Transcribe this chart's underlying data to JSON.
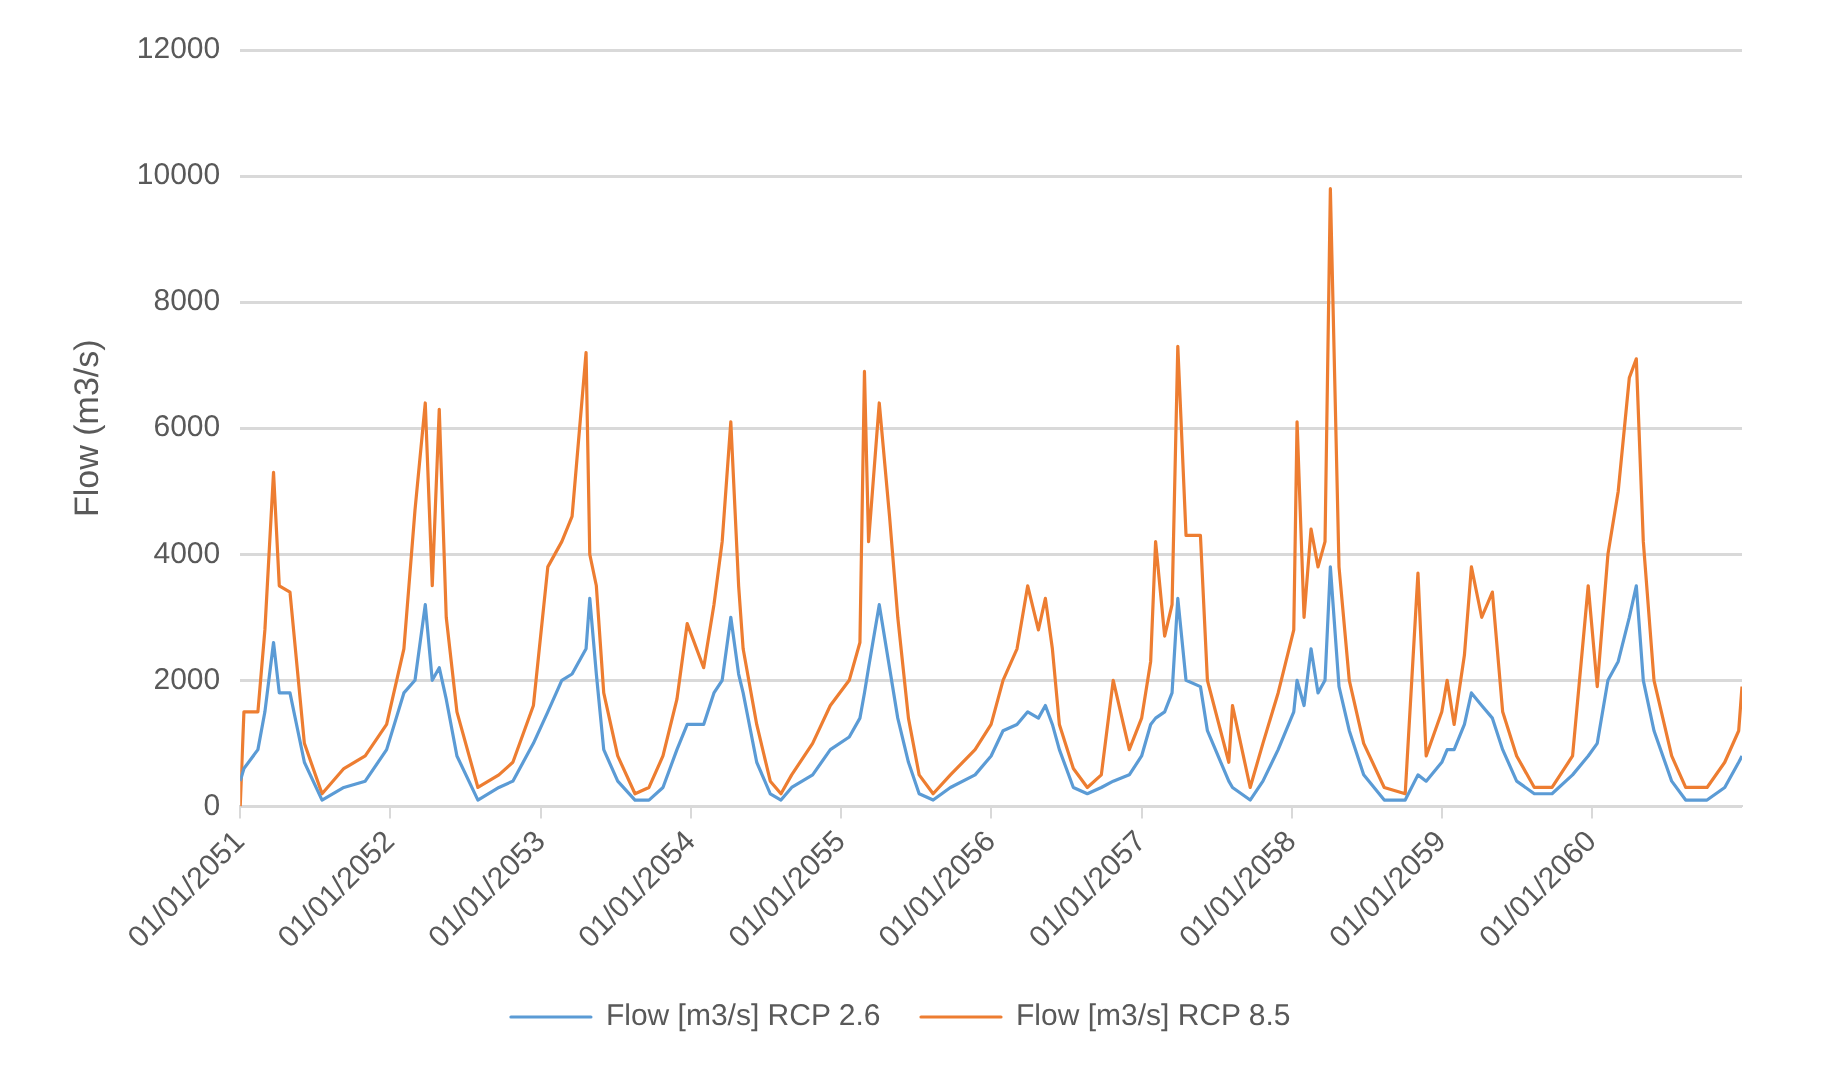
{
  "chart_data": {
    "type": "line",
    "ylabel": "Flow (m3/s)",
    "x": [
      "2051-01-01",
      "2051-01-10",
      "2051-02-13",
      "2051-03-02",
      "2051-03-23",
      "2051-04-06",
      "2051-05-02",
      "2051-06-06",
      "2051-07-19",
      "2051-09-10",
      "2051-11-01",
      "2051-12-23",
      "2052-02-03",
      "2052-03-01",
      "2052-03-26",
      "2052-04-12",
      "2052-04-29",
      "2052-05-16",
      "2052-06-11",
      "2052-08-01",
      "2052-09-21",
      "2052-10-25",
      "2052-12-14",
      "2053-01-18",
      "2053-02-21",
      "2053-03-18",
      "2053-04-21",
      "2053-04-30",
      "2053-05-16",
      "2053-06-03",
      "2053-07-07",
      "2053-08-18",
      "2053-09-21",
      "2053-10-25",
      "2053-11-28",
      "2053-12-23",
      "2054-02-01",
      "2054-02-26",
      "2054-03-18",
      "2054-04-08",
      "2054-04-27",
      "2054-05-08",
      "2054-06-10",
      "2054-07-13",
      "2054-08-08",
      "2054-09-03",
      "2054-10-24",
      "2054-12-06",
      "2055-01-21",
      "2055-02-16",
      "2055-02-27",
      "2055-03-09",
      "2055-04-04",
      "2055-04-29",
      "2055-05-19",
      "2055-06-14",
      "2055-07-10",
      "2055-08-13",
      "2055-09-24",
      "2055-11-23",
      "2056-01-01",
      "2056-01-30",
      "2056-03-04",
      "2056-03-30",
      "2056-04-25",
      "2056-05-12",
      "2056-05-29",
      "2056-06-15",
      "2056-07-19",
      "2056-08-22",
      "2056-09-25",
      "2056-10-24",
      "2056-12-02",
      "2057-01-01",
      "2057-01-23",
      "2057-02-04",
      "2057-02-26",
      "2057-03-16",
      "2057-03-30",
      "2057-04-19",
      "2057-05-24",
      "2057-06-10",
      "2057-08-01",
      "2057-08-10",
      "2057-09-22",
      "2057-10-23",
      "2057-11-29",
      "2058-01-06",
      "2058-01-14",
      "2058-01-31",
      "2058-02-17",
      "2058-03-06",
      "2058-03-23",
      "2058-04-05",
      "2058-04-26",
      "2058-05-21",
      "2058-06-25",
      "2058-08-14",
      "2058-10-04",
      "2058-11-04",
      "2058-11-24",
      "2059-01-01",
      "2059-01-14",
      "2059-01-31",
      "2059-02-25",
      "2059-03-14",
      "2059-04-08",
      "2059-05-04",
      "2059-05-29",
      "2059-07-02",
      "2059-08-14",
      "2059-09-26",
      "2059-11-15",
      "2059-12-23",
      "2060-01-14",
      "2060-02-09",
      "2060-03-05",
      "2060-04-01",
      "2060-04-18",
      "2060-05-05",
      "2060-05-31",
      "2060-07-13",
      "2060-08-16",
      "2060-10-07",
      "2060-11-19",
      "2060-12-23",
      "2060-12-31"
    ],
    "series": [
      {
        "name": "Flow [m3/s] RCP 2.6",
        "color": "#5b9bd5",
        "values": [
          400,
          600,
          900,
          1500,
          2600,
          1800,
          1800,
          700,
          100,
          300,
          400,
          900,
          1800,
          2000,
          3200,
          2000,
          2200,
          1700,
          800,
          100,
          300,
          400,
          1000,
          1500,
          2000,
          2100,
          2500,
          3300,
          2100,
          900,
          400,
          100,
          100,
          300,
          900,
          1300,
          1300,
          1800,
          2000,
          3000,
          2100,
          1800,
          700,
          200,
          100,
          300,
          500,
          900,
          1100,
          1400,
          1800,
          2200,
          3200,
          2200,
          1400,
          700,
          200,
          100,
          300,
          500,
          800,
          1200,
          1300,
          1500,
          1400,
          1600,
          1300,
          900,
          300,
          200,
          300,
          400,
          500,
          800,
          1300,
          1400,
          1500,
          1800,
          3300,
          2000,
          1900,
          1200,
          400,
          300,
          100,
          400,
          900,
          1500,
          2000,
          1600,
          2500,
          1800,
          2000,
          3800,
          1900,
          1200,
          500,
          100,
          100,
          500,
          400,
          700,
          900,
          900,
          1300,
          1800,
          1600,
          1400,
          900,
          400,
          200,
          200,
          500,
          800,
          1000,
          2000,
          2300,
          3000,
          3500,
          2000,
          1200,
          400,
          100,
          100,
          300,
          700,
          800
        ]
      },
      {
        "name": "Flow [m3/s] RCP 8.5",
        "color": "#ed7d31",
        "values": [
          0,
          1500,
          1500,
          2800,
          5300,
          3500,
          3400,
          1000,
          200,
          600,
          800,
          1300,
          2500,
          4700,
          6400,
          3500,
          6300,
          3000,
          1500,
          300,
          500,
          700,
          1600,
          3800,
          4200,
          4600,
          7200,
          4000,
          3500,
          1800,
          800,
          200,
          300,
          800,
          1700,
          2900,
          2200,
          3200,
          4200,
          6100,
          3500,
          2500,
          1300,
          400,
          200,
          500,
          1000,
          1600,
          2000,
          2600,
          6900,
          4200,
          6400,
          4600,
          3000,
          1400,
          500,
          200,
          500,
          900,
          1300,
          2000,
          2500,
          3500,
          2800,
          3300,
          2500,
          1300,
          600,
          300,
          500,
          2000,
          900,
          1400,
          2300,
          4200,
          2700,
          3200,
          7300,
          4300,
          4300,
          2000,
          700,
          1600,
          300,
          1000,
          1800,
          2800,
          6100,
          3000,
          4400,
          3800,
          4200,
          9800,
          3800,
          2000,
          1000,
          300,
          200,
          3700,
          800,
          1500,
          2000,
          1300,
          2400,
          3800,
          3000,
          3400,
          1500,
          800,
          300,
          300,
          800,
          3500,
          1900,
          4000,
          5000,
          6800,
          7100,
          4200,
          2000,
          800,
          300,
          300,
          700,
          1200,
          1900
        ]
      }
    ],
    "xlim": [
      "2051-01-01",
      "2060-12-31"
    ],
    "xticks": [
      {
        "value": "2051-01-01",
        "label": "01/01/2051"
      },
      {
        "value": "2052-01-01",
        "label": "01/01/2052"
      },
      {
        "value": "2053-01-01",
        "label": "01/01/2053"
      },
      {
        "value": "2054-01-01",
        "label": "01/01/2054"
      },
      {
        "value": "2055-01-01",
        "label": "01/01/2055"
      },
      {
        "value": "2056-01-01",
        "label": "01/01/2056"
      },
      {
        "value": "2057-01-01",
        "label": "01/01/2057"
      },
      {
        "value": "2058-01-01",
        "label": "01/01/2058"
      },
      {
        "value": "2059-01-01",
        "label": "01/01/2059"
      },
      {
        "value": "2060-01-01",
        "label": "01/01/2060"
      }
    ],
    "ylim": [
      0,
      12000
    ],
    "yticks": [
      0,
      2000,
      4000,
      6000,
      8000,
      10000,
      12000
    ],
    "grid": "y",
    "legend": "bottom",
    "marker": "none"
  }
}
